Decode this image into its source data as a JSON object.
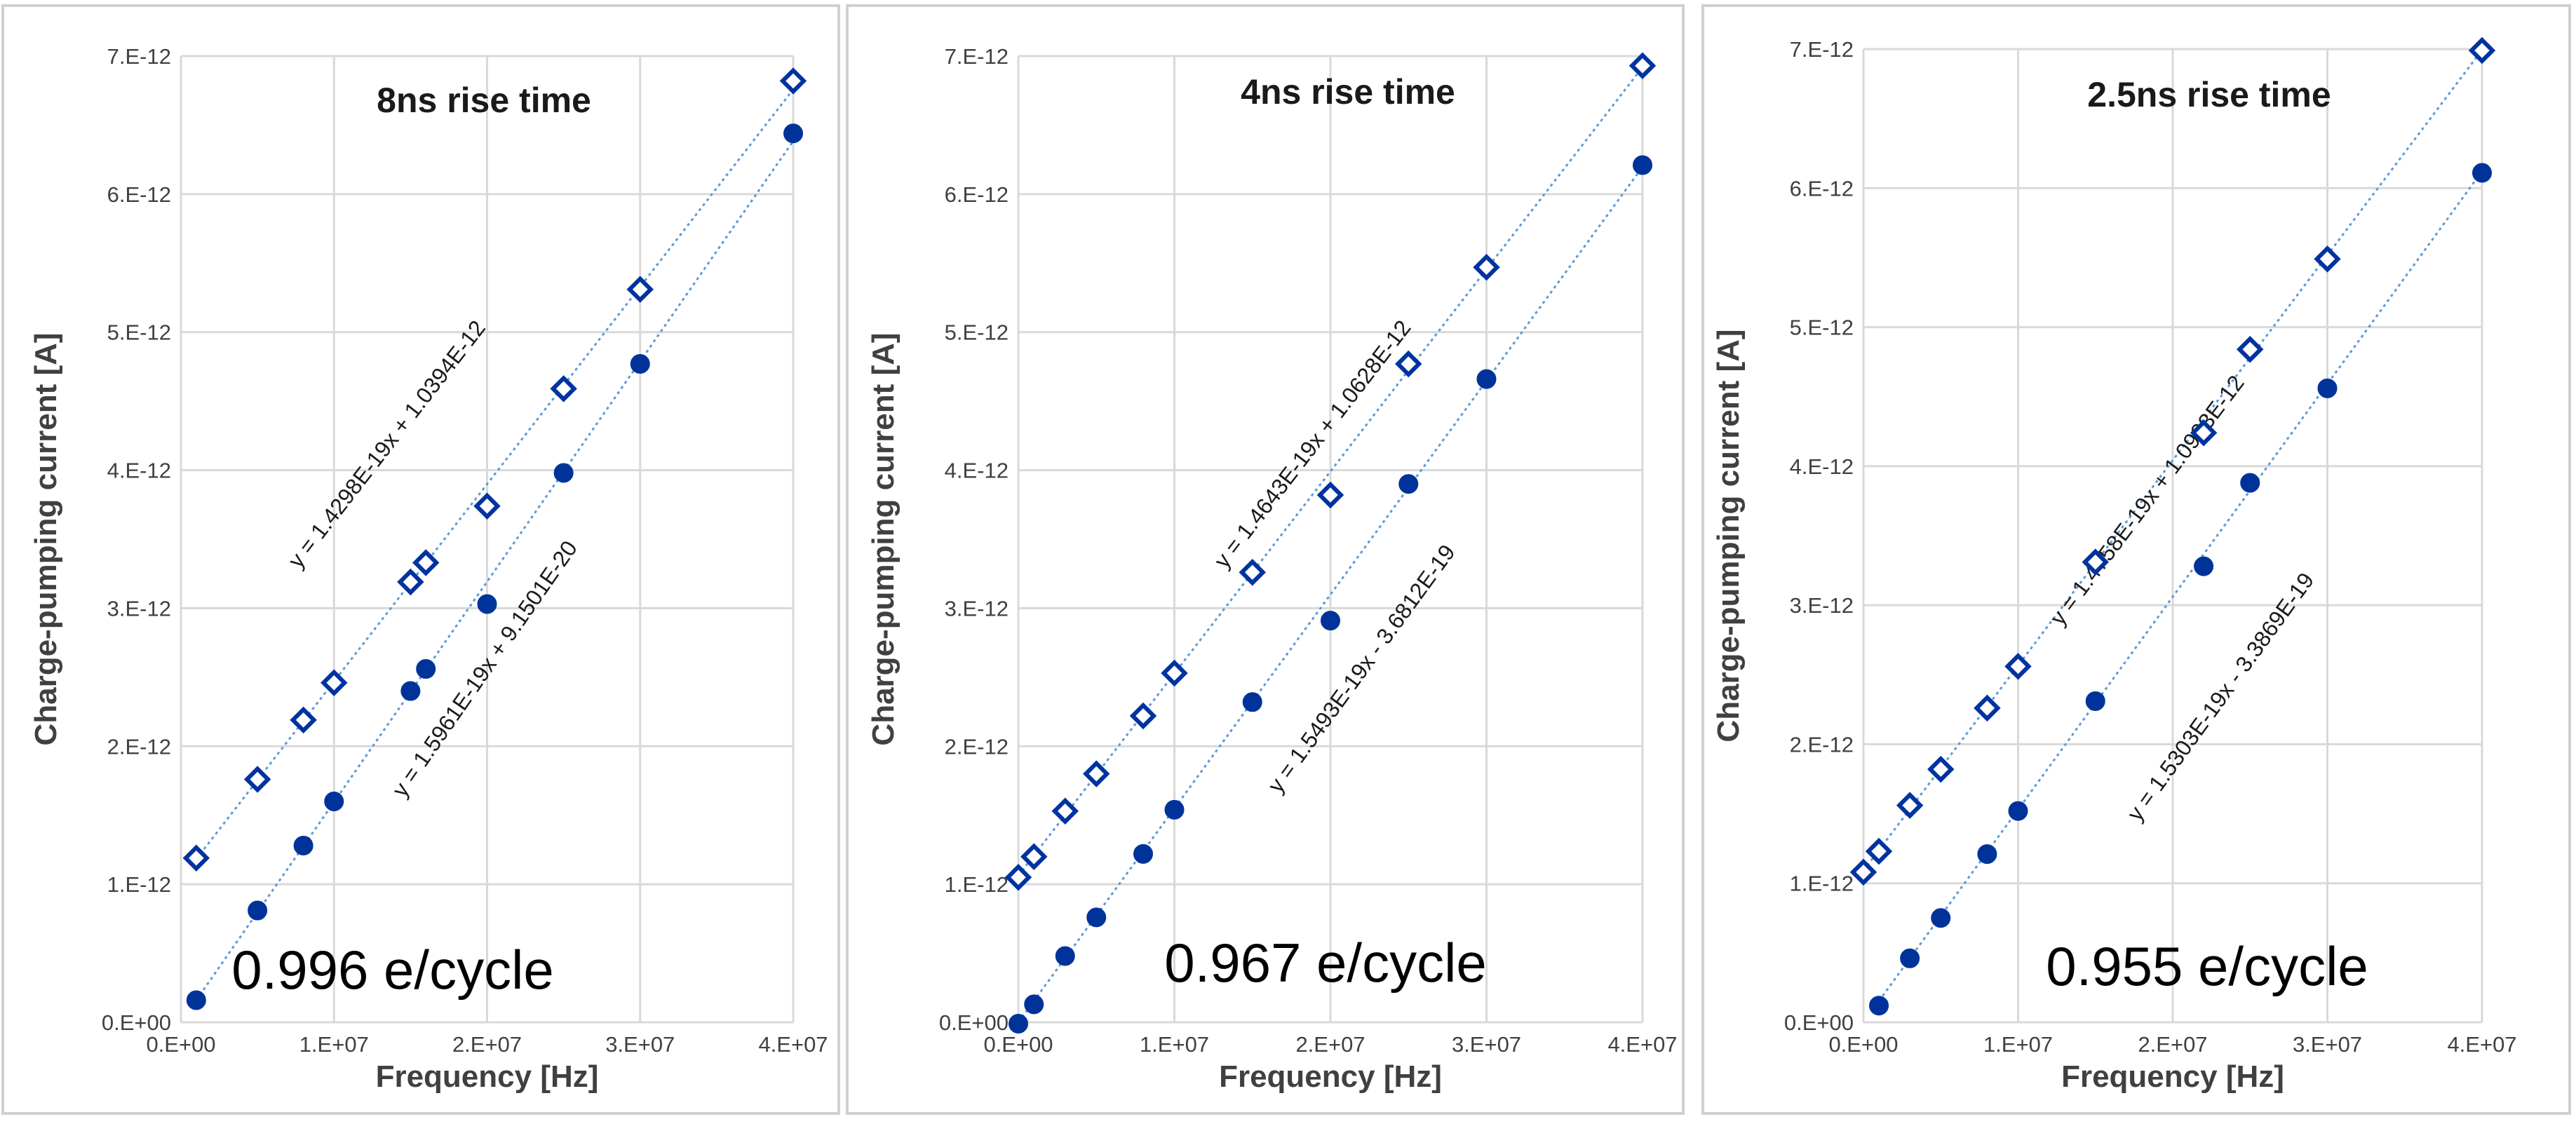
{
  "chart_data": [
    {
      "type": "scatter",
      "title": "8ns rise time",
      "xlabel": "Frequency [Hz]",
      "ylabel": "Charge-pumping current [A]",
      "xlim": [
        0,
        40000000
      ],
      "ylim": [
        0,
        7e-12
      ],
      "xticks": [
        "0.E+00",
        "1.E+07",
        "2.E+07",
        "3.E+07",
        "4.E+07"
      ],
      "yticks": [
        "0.E+00",
        "1.E-12",
        "2.E-12",
        "3.E-12",
        "4.E-12",
        "5.E-12",
        "6.E-12",
        "7.E-12"
      ],
      "grid": true,
      "series": [
        {
          "name": "open",
          "marker": "diamond-open",
          "x": [
            1000000,
            5000000,
            8000000,
            10000000,
            15000000,
            16000000,
            20000000,
            25000000,
            30000000,
            40000000
          ],
          "y": [
            1.19e-12,
            1.76e-12,
            2.19e-12,
            2.46e-12,
            3.19e-12,
            3.33e-12,
            3.74e-12,
            4.59e-12,
            5.31e-12,
            6.82e-12
          ],
          "fit": {
            "slope": 1.4298e-19,
            "intercept": 1.0394e-12,
            "equation": "y = 1.4298E-19x + 1.0394E-12"
          }
        },
        {
          "name": "filled",
          "marker": "circle-filled",
          "x": [
            1000000,
            5000000,
            8000000,
            10000000,
            15000000,
            16000000,
            20000000,
            25000000,
            30000000,
            40000000
          ],
          "y": [
            1.6e-13,
            8.1e-13,
            1.28e-12,
            1.6e-12,
            2.4e-12,
            2.56e-12,
            3.03e-12,
            3.98e-12,
            4.77e-12,
            6.44e-12
          ],
          "fit": {
            "slope": 1.5961e-19,
            "intercept": 9.1501e-20,
            "equation": "y = 1.5961E-19x + 9.1501E-20"
          }
        }
      ],
      "annotation": "0.996 e/cycle"
    },
    {
      "type": "scatter",
      "title": "4ns rise time",
      "xlabel": "Frequency [Hz]",
      "ylabel": "Charge-pumping current [A]",
      "xlim": [
        0,
        40000000
      ],
      "ylim": [
        0,
        7e-12
      ],
      "xticks": [
        "0.E+00",
        "1.E+07",
        "2.E+07",
        "3.E+07",
        "4.E+07"
      ],
      "yticks": [
        "0.E+00",
        "1.E-12",
        "2.E-12",
        "3.E-12",
        "4.E-12",
        "5.E-12",
        "6.E-12",
        "7.E-12"
      ],
      "grid": true,
      "series": [
        {
          "name": "open",
          "marker": "diamond-open",
          "x": [
            0,
            1000000,
            3000000,
            5000000,
            8000000,
            10000000,
            15000000,
            20000000,
            25000000,
            30000000,
            40000000
          ],
          "y": [
            1.05e-12,
            1.2e-12,
            1.53e-12,
            1.8e-12,
            2.22e-12,
            2.53e-12,
            3.26e-12,
            3.82e-12,
            4.77e-12,
            5.47e-12,
            6.93e-12
          ],
          "fit": {
            "slope": 1.4643e-19,
            "intercept": 1.0628e-12,
            "equation": "y = 1.4643E-19x + 1.0628E-12"
          }
        },
        {
          "name": "filled",
          "marker": "circle-filled",
          "x": [
            0,
            1000000,
            3000000,
            5000000,
            8000000,
            10000000,
            15000000,
            20000000,
            25000000,
            30000000,
            40000000
          ],
          "y": [
            -1e-14,
            1.3e-13,
            4.8e-13,
            7.6e-13,
            1.22e-12,
            1.54e-12,
            2.32e-12,
            2.91e-12,
            3.9e-12,
            4.66e-12,
            6.21e-12
          ],
          "fit": {
            "slope": 1.5493e-19,
            "intercept": -3.6812e-19,
            "equation": "y = 1.5493E-19x - 3.6812E-19"
          }
        }
      ],
      "annotation": "0.967 e/cycle"
    },
    {
      "type": "scatter",
      "title": "2.5ns rise time",
      "xlabel": "Frequency [Hz]",
      "ylabel": "Charge-pumping current [A]",
      "xlim": [
        0,
        40000000
      ],
      "ylim": [
        0,
        7e-12
      ],
      "xticks": [
        "0.E+00",
        "1.E+07",
        "2.E+07",
        "3.E+07",
        "4.E+07"
      ],
      "yticks": [
        "0.E+00",
        "1.E-12",
        "2.E-12",
        "3.E-12",
        "4.E-12",
        "5.E-12",
        "6.E-12",
        "7.E-12"
      ],
      "grid": true,
      "series": [
        {
          "name": "open",
          "marker": "diamond-open",
          "x": [
            0,
            1000000,
            3000000,
            5000000,
            8000000,
            10000000,
            15000000,
            22000000,
            25000000,
            30000000,
            40000000
          ],
          "y": [
            1.08e-12,
            1.23e-12,
            1.56e-12,
            1.82e-12,
            2.26e-12,
            2.56e-12,
            3.31e-12,
            4.24e-12,
            4.84e-12,
            5.49e-12,
            6.99e-12
          ],
          "fit": {
            "slope": 1.4758e-19,
            "intercept": 1.0903e-12,
            "equation": "y = 1.4758E-19x + 1.0903E-12"
          }
        },
        {
          "name": "filled",
          "marker": "circle-filled",
          "x": [
            1000000,
            3000000,
            5000000,
            8000000,
            10000000,
            15000000,
            22000000,
            25000000,
            30000000,
            40000000
          ],
          "y": [
            1.2e-13,
            4.6e-13,
            7.5e-13,
            1.21e-12,
            1.52e-12,
            2.31e-12,
            3.28e-12,
            3.88e-12,
            4.56e-12,
            6.11e-12
          ],
          "fit": {
            "slope": 1.5303e-19,
            "intercept": -3.3869e-19,
            "equation": "y = 1.5303E-19x - 3.3869E-19"
          }
        }
      ],
      "annotation": "0.955 e/cycle"
    }
  ]
}
